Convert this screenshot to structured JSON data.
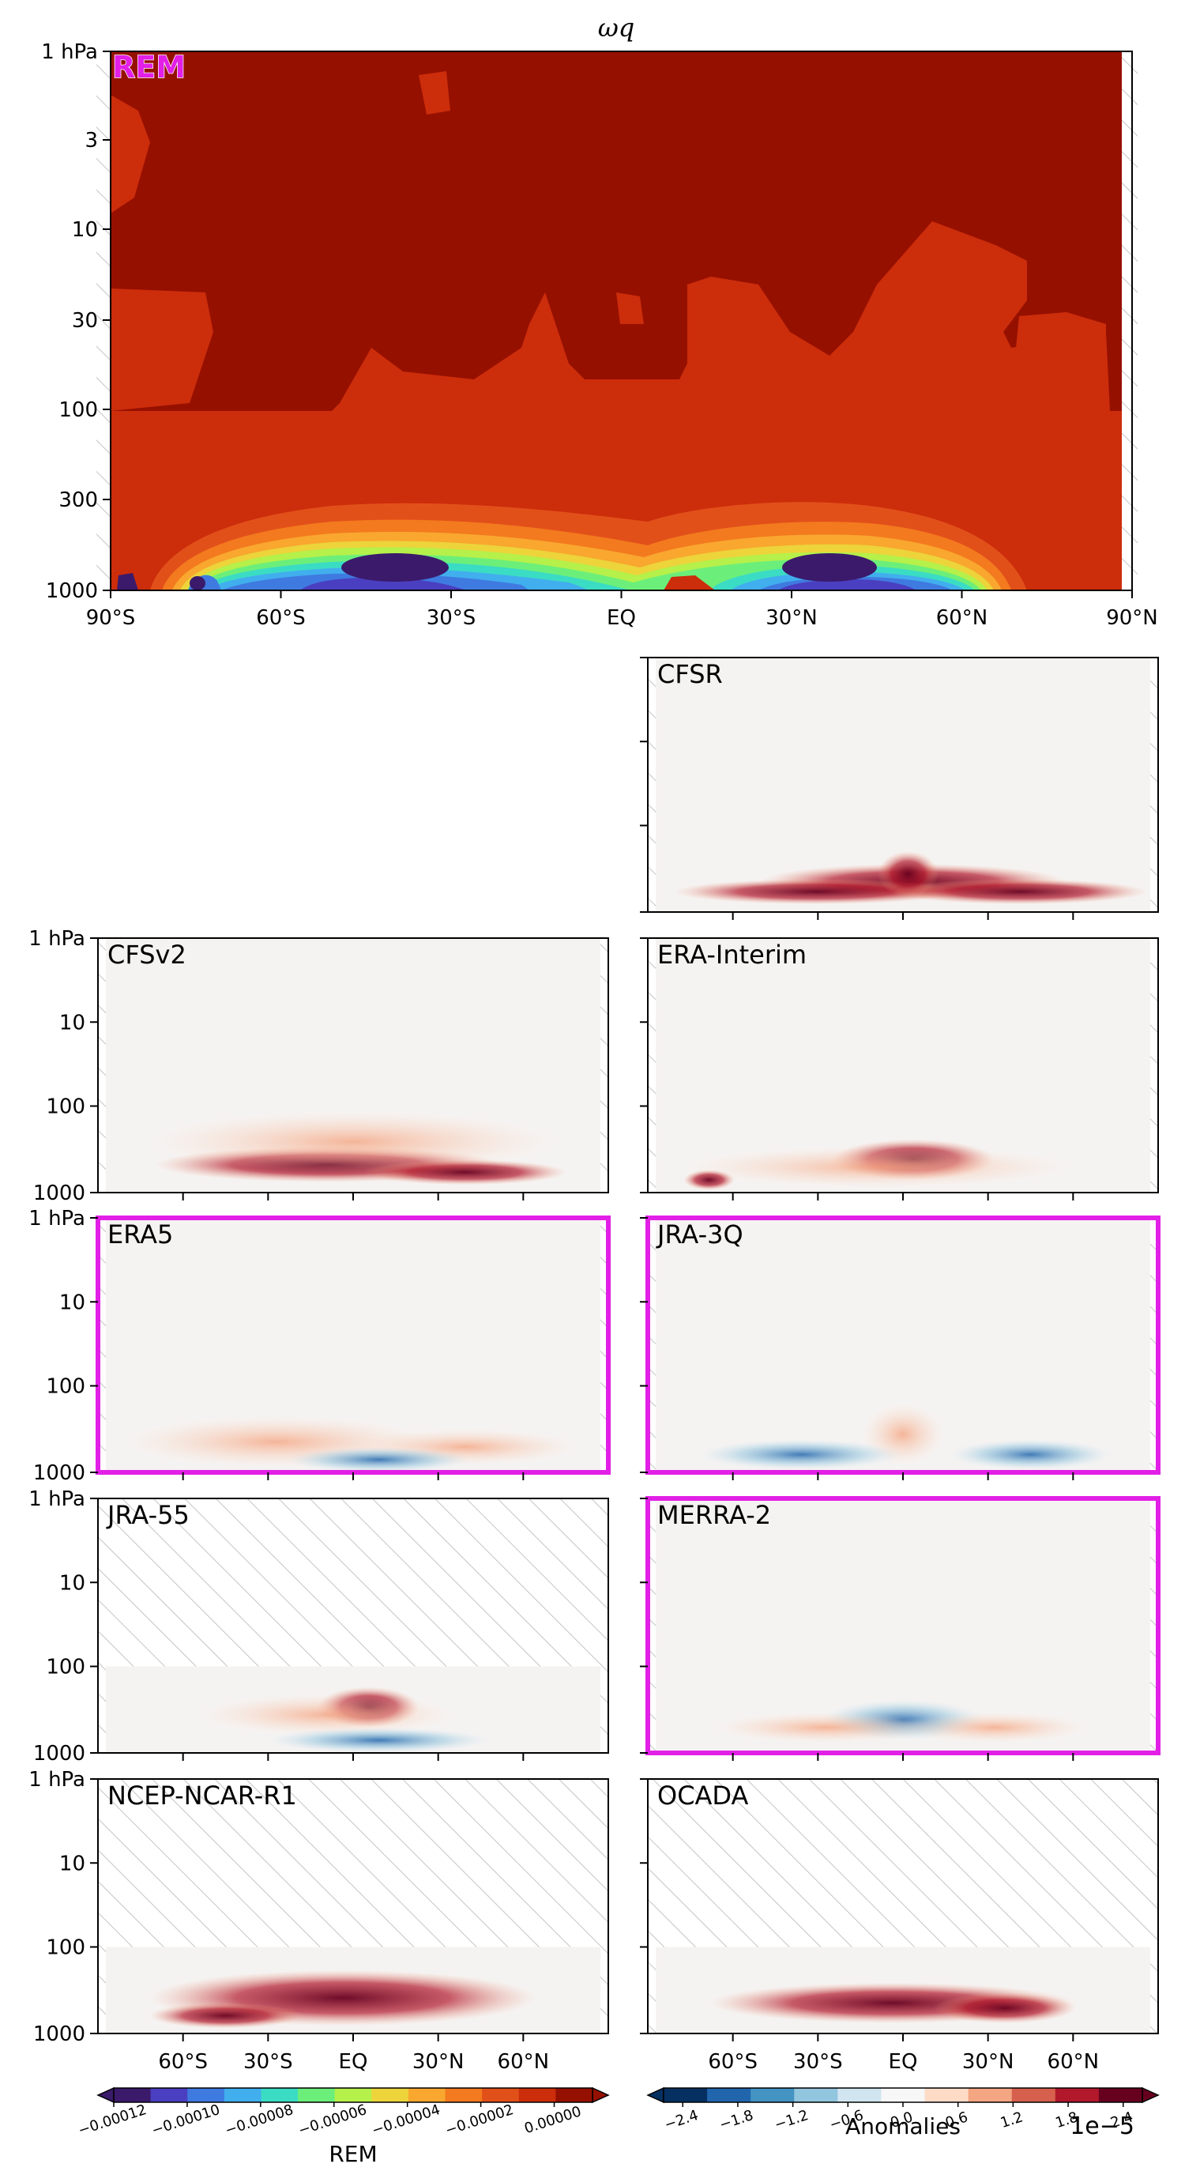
{
  "title": "ωq",
  "chart_data": {
    "type": "heatmap",
    "variable": "ωq",
    "latitude_ticks": [
      "90°S",
      "60°S",
      "30°S",
      "EQ",
      "30°N",
      "60°N",
      "90°N"
    ],
    "latitude_ticks_small": [
      "60°S",
      "30°S",
      "EQ",
      "30°N",
      "60°N"
    ],
    "pressure_ticks_main": [
      "1 hPa",
      "3",
      "10",
      "30",
      "100",
      "300",
      "1000"
    ],
    "pressure_ticks_small": [
      "1 hPa",
      "10",
      "100",
      "1000"
    ],
    "main_panel": {
      "label": "REM",
      "levels": [
        -0.00012,
        -0.00011,
        -0.0001,
        -9e-05,
        -8e-05,
        -7e-05,
        -6e-05,
        -5e-05,
        -4e-05,
        -3e-05,
        -2e-05,
        -1e-05,
        0.0,
        1e-05
      ],
      "features": [
        {
          "region": "upper atmosphere (1–100 hPa)",
          "value": "≈ 0.00000 to 0.00001"
        },
        {
          "region": "near-surface minimum around 30°S",
          "value": "≈ -0.00012"
        },
        {
          "region": "near-surface minimum around 30°N",
          "value": "≈ -0.00012"
        }
      ]
    },
    "anomaly_panels": [
      {
        "label": "CFSR",
        "highlighted": false,
        "hatched_top": false
      },
      {
        "label": "CFSv2",
        "highlighted": false,
        "hatched_top": false
      },
      {
        "label": "ERA-Interim",
        "highlighted": false,
        "hatched_top": false
      },
      {
        "label": "ERA5",
        "highlighted": true,
        "hatched_top": false
      },
      {
        "label": "JRA-3Q",
        "highlighted": true,
        "hatched_top": false
      },
      {
        "label": "JRA-55",
        "highlighted": false,
        "hatched_top": true
      },
      {
        "label": "MERRA-2",
        "highlighted": true,
        "hatched_top": false
      },
      {
        "label": "NCEP-NCAR-R1",
        "highlighted": false,
        "hatched_top": true
      },
      {
        "label": "OCADA",
        "highlighted": false,
        "hatched_top": true
      }
    ],
    "colorbars": [
      {
        "label": "REM",
        "ticks": [
          "−0.00012",
          "−0.00010",
          "−0.00008",
          "−0.00006",
          "−0.00004",
          "−0.00002",
          "0.00000"
        ],
        "colors": [
          "#3b1a6b",
          "#4a3fc0",
          "#3f7ae0",
          "#41aeee",
          "#3bdcc4",
          "#6cef7a",
          "#b6f04a",
          "#ecd43a",
          "#f9a72f",
          "#f37a1e",
          "#e2501a",
          "#cc2d0b",
          "#961000"
        ]
      },
      {
        "label": "Anomalies",
        "multiplier": "1e−5",
        "ticks": [
          "−2.4",
          "−1.8",
          "−1.2",
          "−0.6",
          "0.0",
          "0.6",
          "1.2",
          "1.8",
          "2.4"
        ],
        "colors": [
          "#053061",
          "#2166ac",
          "#4393c3",
          "#92c5de",
          "#d1e5f0",
          "#f7f7f7",
          "#fddbc7",
          "#f4a582",
          "#d6604d",
          "#b2182b",
          "#67001f"
        ]
      }
    ]
  },
  "colors": {
    "highlight_frame": "#e21fe6",
    "rem_label_fill": "#e21fe6",
    "neutral_fill": "#f5f3f2"
  }
}
